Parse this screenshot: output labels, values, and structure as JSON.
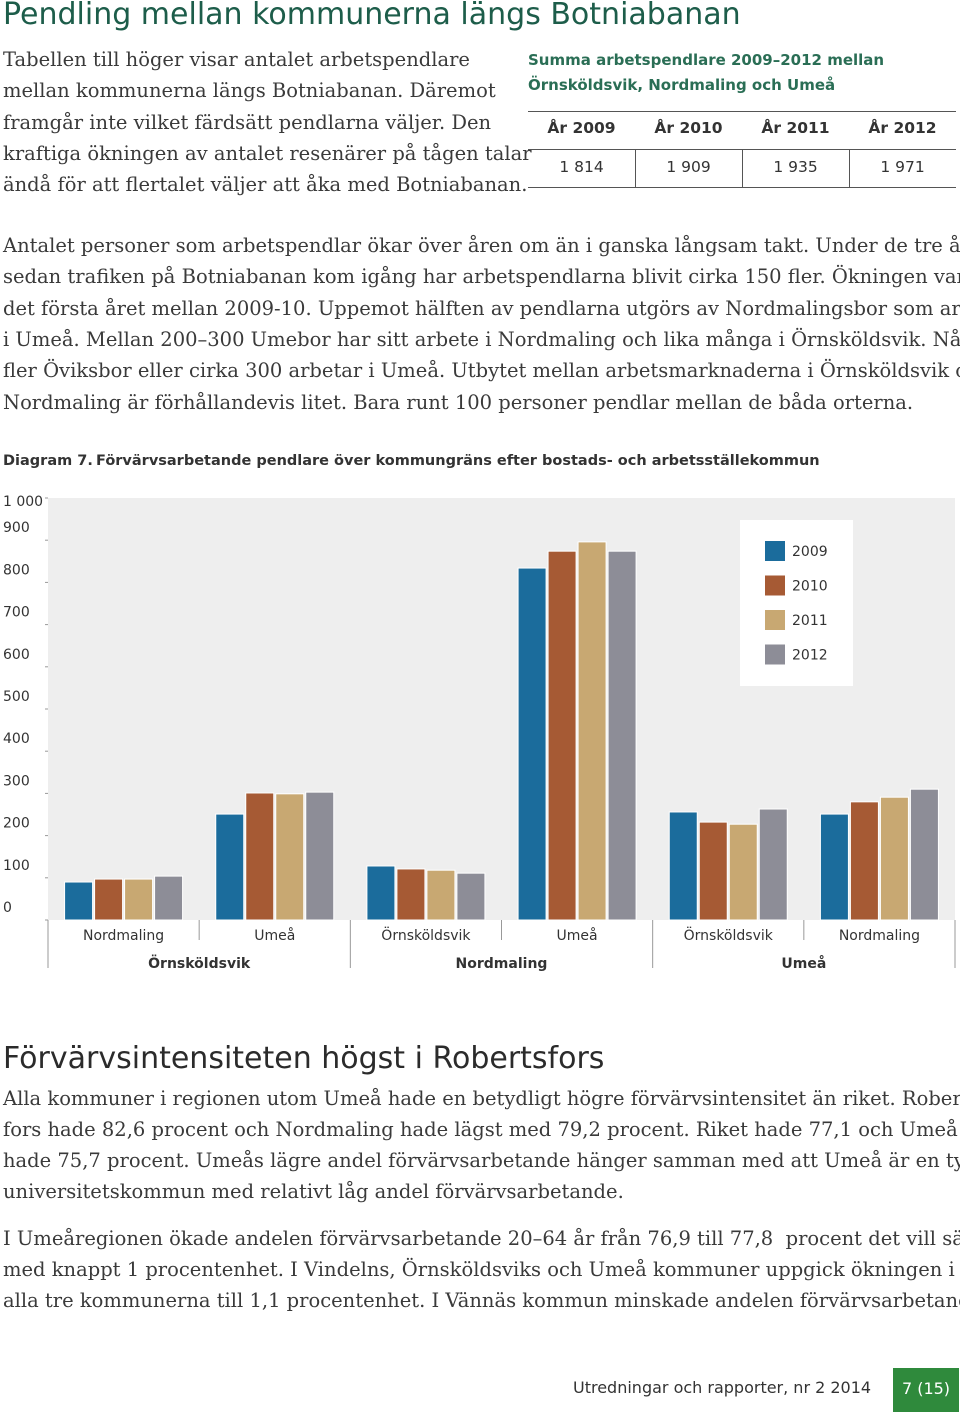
{
  "header": {
    "title": "Pendling mellan kommunerna längs Botniabanan"
  },
  "intro": {
    "lines": [
      "Tabellen till höger visar antalet arbetspendlare",
      "mellan kommunerna längs Botniabanan. Däremot",
      "framgår inte vilket färdsätt pendlarna väljer. Den",
      "kraftiga ökningen av antalet resenärer på tågen talar",
      "ändå för att flertalet väljer att åka med Botniabanan."
    ]
  },
  "table": {
    "caption": [
      "Summa arbetspendlare 2009–2012 mellan",
      "Örnsköldsvik, Nordmaling och Umeå"
    ],
    "header": [
      "År 2009",
      "År 2010",
      "År 2011",
      "År 2012"
    ],
    "rows": [
      [
        "1 814",
        "1 909",
        "1 935",
        "1 971"
      ]
    ]
  },
  "paragraph": {
    "lines": [
      "Antalet personer som arbetspendlar ökar över åren om än i ganska långsam takt. Under de tre åren",
      "sedan trafiken på Botniabanan kom igång har arbetspendlarna blivit cirka 150 fler. Ökningen var högst",
      "det första året mellan 2009-10. Uppemot hälften av pendlarna utgörs av Nordmalingsbor som arbetar",
      "i Umeå. Mellan 200–300 Umebor har sitt arbete i Nordmaling och lika många i Örnsköldsvik. Något",
      "fler Öviksbor eller cirka 300 arbetar i Umeå. Utbytet mellan arbetsmarknaderna i Örnsköldsvik och",
      "Nordmaling är förhållandevis litet. Bara runt 100 personer pendlar mellan de båda orterna."
    ]
  },
  "chart_data": {
    "type": "bar",
    "label": "Diagram 7.",
    "title": "Förvärvsarbetande pendlare över kommungräns efter bostads- och arbetsställekommun",
    "categories": [
      "Nordmaling",
      "Umeå",
      "Örnsköldsvik",
      "Umeå",
      "Örnsköldsvik",
      "Nordmaling"
    ],
    "category_groups": [
      "Örnsköldsvik",
      "Nordmaling",
      "Umeå"
    ],
    "series": [
      {
        "name": "2009",
        "color": "#1b6c9c",
        "values": [
          90,
          251,
          128,
          834,
          256,
          251
        ]
      },
      {
        "name": "2010",
        "color": "#a65a34",
        "values": [
          97,
          301,
          121,
          874,
          232,
          280
        ]
      },
      {
        "name": "2011",
        "color": "#c8a872",
        "values": [
          97,
          299,
          118,
          896,
          227,
          291
        ]
      },
      {
        "name": "2012",
        "color": "#8d8d97",
        "values": [
          104,
          303,
          111,
          874,
          263,
          310
        ]
      }
    ],
    "ylim": [
      0,
      1000
    ],
    "yticks": [
      0,
      100,
      200,
      300,
      400,
      500,
      600,
      700,
      800,
      900,
      {
        "value": 1000,
        "label": "1 000"
      }
    ],
    "legend": "upper-right"
  },
  "section": {
    "title": "Förvärvsintensiteten högst i Robertsfors",
    "paragraphs": [
      [
        "Alla kommuner i regionen utom Umeå hade en betydligt högre förvärvsintensitet än riket. Roberts-",
        "fors hade 82,6 procent och Nordmaling hade lägst med 79,2 procent. Riket hade 77,1 och Umeå",
        "hade 75,7 procent. Umeås lägre andel förvärvsarbetande hänger samman med att Umeå är en typisk",
        "universitetskommun med relativt låg andel förvärvsarbetande."
      ],
      [
        "I Umeåregionen ökade andelen förvärvsarbetande 20–64 år från 76,9 till 77,8  procent det vill säga",
        "med knappt 1 procentenhet. I Vindelns, Örnsköldsviks och Umeå kommuner uppgick ökningen i",
        "alla tre kommunerna till 1,1 procentenhet. I Vännäs kommun minskade andelen förvärvsarbetande"
      ]
    ]
  },
  "footer": {
    "publication": "Utredningar och rapporter, nr 2 2014",
    "page": "7 (15)"
  }
}
